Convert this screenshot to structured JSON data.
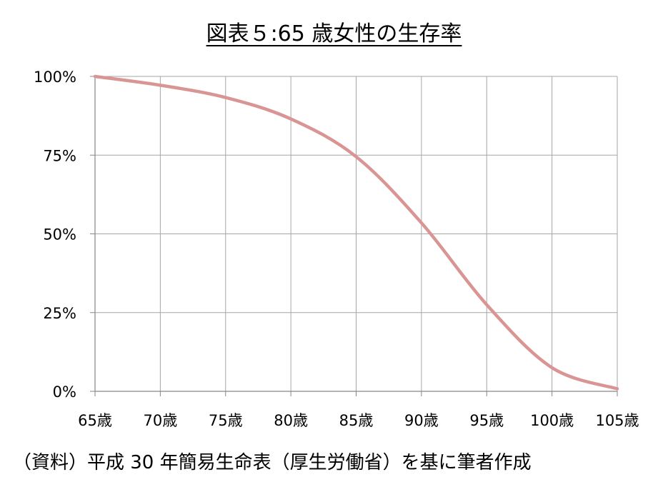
{
  "chart_data": {
    "type": "line",
    "title": "図表５:65 歳女性の生存率",
    "x": [
      65,
      70,
      75,
      80,
      85,
      90,
      95,
      100,
      105
    ],
    "categories": [
      "65歳",
      "70歳",
      "75歳",
      "80歳",
      "85歳",
      "90歳",
      "95歳",
      "100歳",
      "105歳"
    ],
    "series": [
      {
        "values": [
          100,
          97.2,
          93.3,
          86.5,
          74.5,
          53.5,
          27.5,
          7.5,
          0.8
        ]
      }
    ],
    "y_ticks": [
      "0%",
      "25%",
      "50%",
      "75%",
      "100%"
    ],
    "ylim": [
      0,
      100
    ],
    "xlim": [
      65,
      105
    ],
    "grid": true,
    "line_color": "#d99594"
  },
  "source_note": "（資料）平成 30 年簡易生命表（厚生労働省）を基に筆者作成"
}
